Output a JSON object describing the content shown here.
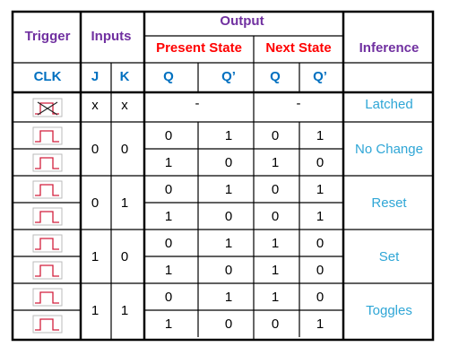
{
  "header": {
    "trigger": "Trigger",
    "inputs": "Inputs",
    "output": "Output",
    "present_state": "Present State",
    "next_state": "Next State",
    "inference": "Inference",
    "clk": "CLK",
    "j": "J",
    "k": "K",
    "present_q": "Q",
    "present_qbar": "Q’",
    "next_q": "Q",
    "next_qbar": "Q’"
  },
  "latched_row": {
    "clock_icon": "crossed-clock-pulse-icon",
    "j": "x",
    "k": "x",
    "present": "-",
    "next": "-",
    "inference": "Latched"
  },
  "groups": [
    {
      "j": "0",
      "k": "0",
      "inference": "No Change",
      "rows": [
        {
          "q": "0",
          "qbar": "1",
          "nq": "0",
          "nqbar": "1"
        },
        {
          "q": "1",
          "qbar": "0",
          "nq": "1",
          "nqbar": "0"
        }
      ]
    },
    {
      "j": "0",
      "k": "1",
      "inference": "Reset",
      "rows": [
        {
          "q": "0",
          "qbar": "1",
          "nq": "0",
          "nqbar": "1"
        },
        {
          "q": "1",
          "qbar": "0",
          "nq": "0",
          "nqbar": "1"
        }
      ]
    },
    {
      "j": "1",
      "k": "0",
      "inference": "Set",
      "rows": [
        {
          "q": "0",
          "qbar": "1",
          "nq": "1",
          "nqbar": "0"
        },
        {
          "q": "1",
          "qbar": "0",
          "nq": "1",
          "nqbar": "0"
        }
      ]
    },
    {
      "j": "1",
      "k": "1",
      "inference": "Toggles",
      "rows": [
        {
          "q": "0",
          "qbar": "1",
          "nq": "1",
          "nqbar": "0"
        },
        {
          "q": "1",
          "qbar": "0",
          "nq": "0",
          "nqbar": "1"
        }
      ]
    }
  ],
  "colors": {
    "purple_header": "#7030a0",
    "red_header": "#ff0000",
    "blue_header": "#0070c0",
    "inference_text": "#2fa6d6",
    "pulse": "#d21f3c",
    "cell_text": "#000000",
    "border": "#000000"
  }
}
